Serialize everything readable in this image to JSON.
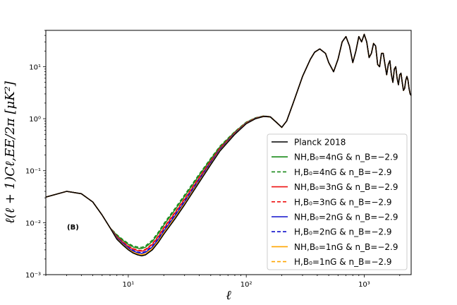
{
  "chart_data": {
    "type": "line",
    "title": "",
    "panel_label": "(B)",
    "xlabel": "ℓ",
    "ylabel": "ℓ(ℓ + 1)C_{ℓ,EE}/2π [μK²]",
    "ylabel_text": "ℓ(ℓ + 1)Cℓ,EE/2π [μK²]",
    "xscale": "log",
    "yscale": "log",
    "xlim": [
      2,
      2500
    ],
    "ylim": [
      0.001,
      50
    ],
    "xticks": [
      10,
      100,
      1000
    ],
    "xtick_labels": [
      "10¹",
      "10²",
      "10³"
    ],
    "yticks": [
      0.001,
      0.01,
      0.1,
      1,
      10
    ],
    "ytick_labels": [
      "10⁻³",
      "10⁻²",
      "10⁻¹",
      "10⁰",
      "10¹"
    ],
    "legend_position": "lower-right",
    "base_curve": {
      "l": [
        2,
        3,
        4,
        5,
        6,
        7,
        8,
        9,
        10,
        11,
        12,
        13,
        14,
        16,
        18,
        20,
        25,
        30,
        40,
        50,
        60,
        80,
        100,
        120,
        140,
        160,
        180,
        200,
        220,
        250,
        300,
        350,
        380,
        420,
        470,
        500,
        550,
        600,
        650,
        700,
        750,
        800,
        850,
        900,
        950,
        1000,
        1050,
        1100,
        1150,
        1200,
        1250,
        1300,
        1350,
        1400,
        1450,
        1500,
        1550,
        1600,
        1650,
        1700,
        1750,
        1800,
        1850,
        1900,
        1950,
        2000,
        2050,
        2100,
        2150,
        2200,
        2250,
        2300,
        2350,
        2400,
        2450,
        2500
      ],
      "values": [
        0.031,
        0.04,
        0.036,
        0.025,
        0.014,
        0.008,
        0.0048,
        0.0037,
        0.003,
        0.0026,
        0.0024,
        0.0023,
        0.0024,
        0.003,
        0.0042,
        0.006,
        0.012,
        0.022,
        0.06,
        0.13,
        0.24,
        0.5,
        0.8,
        1.0,
        1.1,
        1.08,
        0.85,
        0.68,
        0.9,
        2.0,
        6.5,
        14,
        19,
        22,
        18,
        12,
        8,
        14,
        30,
        38,
        25,
        12,
        20,
        38,
        30,
        42,
        30,
        15,
        18,
        28,
        25,
        11,
        10,
        18,
        18,
        11,
        7,
        11,
        13,
        7,
        5,
        9,
        10,
        6,
        4.5,
        7,
        7.5,
        5,
        3.5,
        3.8,
        5.5,
        6.5,
        5.5,
        3.8,
        3.0,
        2.8
      ]
    },
    "series": [
      {
        "name": "Planck 2018",
        "color": "#000000",
        "dash": "solid",
        "low_l_factor": 1.0
      },
      {
        "name": "NH,B₀=4nG & n_B=−2.9",
        "color": "#1a8a1a",
        "dash": "solid",
        "low_l_factor": 1.5
      },
      {
        "name": "H,B₀=4nG & n_B=−2.9",
        "color": "#1a8a1a",
        "dash": "dashed",
        "low_l_factor": 1.6
      },
      {
        "name": "NH,B₀=3nG & n_B=−2.9",
        "color": "#ee1111",
        "dash": "solid",
        "low_l_factor": 1.3
      },
      {
        "name": "H,B₀=3nG & n_B=−2.9",
        "color": "#ee1111",
        "dash": "dashed",
        "low_l_factor": 1.35
      },
      {
        "name": "NH,B₀=2nG & n_B=−2.9",
        "color": "#1111cc",
        "dash": "solid",
        "low_l_factor": 1.15
      },
      {
        "name": "H,B₀=2nG & n_B=−2.9",
        "color": "#1111cc",
        "dash": "dashed",
        "low_l_factor": 1.2
      },
      {
        "name": "NH,B₀=1nG & n_B=−2.9",
        "color": "#ffa500",
        "dash": "solid",
        "low_l_factor": 1.05
      },
      {
        "name": "H,B₀=1nG & n_B=−2.9",
        "color": "#ffa500",
        "dash": "dashed",
        "low_l_factor": 1.07
      }
    ]
  }
}
